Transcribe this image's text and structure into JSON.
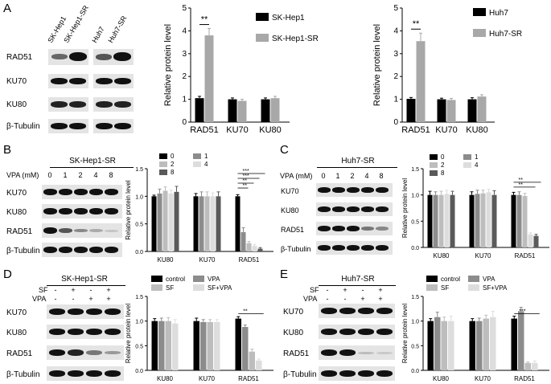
{
  "panels": {
    "A": "A",
    "B": "B",
    "C": "C",
    "D": "D",
    "E": "E"
  },
  "panelA": {
    "lanes": [
      "SK-Hep1",
      "SK-Hep1-SR",
      "Huh7",
      "Huh7-SR"
    ],
    "rows": [
      "RAD51",
      "KU70",
      "KU80",
      "β-Tubulin"
    ]
  },
  "panelB": {
    "title": "SK-Hep1-SR",
    "vpa_label": "VPA (mM)",
    "doses": [
      "0",
      "1",
      "2",
      "4",
      "8"
    ],
    "rows": [
      "KU70",
      "KU80",
      "RAD51",
      "β-Tubulin"
    ]
  },
  "panelC": {
    "title": "Huh7-SR",
    "vpa_label": "VPA (mM)",
    "doses": [
      "0",
      "1",
      "2",
      "4",
      "8"
    ],
    "rows": [
      "KU70",
      "KU80",
      "RAD51",
      "β-Tubulin"
    ]
  },
  "panelD": {
    "title": "SK-Hep1-SR",
    "sf_label": "SF",
    "vpa_label": "VPA",
    "sf_signs": [
      "-",
      "+",
      "-",
      "+"
    ],
    "vpa_signs": [
      "-",
      "-",
      "+",
      "+"
    ],
    "rows": [
      "KU70",
      "KU80",
      "RAD51",
      "β-Tubulin"
    ]
  },
  "panelE": {
    "title": "Huh7-SR",
    "sf_label": "SF",
    "vpa_label": "VPA",
    "sf_signs": [
      "-",
      "+",
      "-",
      "+"
    ],
    "vpa_signs": [
      "-",
      "-",
      "+",
      "+"
    ],
    "rows": [
      "KU70",
      "KU80",
      "RAD51",
      "β-Tubulin"
    ]
  },
  "chart_data": [
    {
      "id": "A1",
      "type": "bar",
      "categories": [
        "RAD51",
        "KU70",
        "KU80"
      ],
      "series": [
        {
          "name": "SK-Hep1",
          "color": "#000000",
          "values": [
            1.05,
            1.0,
            1.0
          ],
          "err": [
            0.08,
            0.06,
            0.06
          ]
        },
        {
          "name": "SK-Hep1-SR",
          "color": "#a8a8a8",
          "values": [
            3.8,
            0.93,
            1.05
          ],
          "err": [
            0.3,
            0.07,
            0.08
          ]
        }
      ],
      "ylabel": "Relative protein level",
      "ylim": [
        0,
        5
      ],
      "yticks": [
        "0",
        "1",
        "2",
        "3",
        "4",
        "5"
      ],
      "sig": [
        {
          "text": "**",
          "cat": 0
        }
      ]
    },
    {
      "id": "A2",
      "type": "bar",
      "categories": [
        "RAD51",
        "KU70",
        "KU80"
      ],
      "series": [
        {
          "name": "Huh7",
          "color": "#000000",
          "values": [
            1.02,
            1.0,
            1.0
          ],
          "err": [
            0.06,
            0.05,
            0.07
          ]
        },
        {
          "name": "Huh7-SR",
          "color": "#a8a8a8",
          "values": [
            3.55,
            0.97,
            1.12
          ],
          "err": [
            0.35,
            0.07,
            0.08
          ]
        }
      ],
      "ylabel": "Relative protein level",
      "ylim": [
        0,
        5
      ],
      "yticks": [
        "0",
        "1",
        "2",
        "3",
        "4",
        "5"
      ],
      "sig": [
        {
          "text": "**",
          "cat": 0
        }
      ]
    },
    {
      "id": "B",
      "type": "bar",
      "categories": [
        "KU80",
        "KU70",
        "RAD51"
      ],
      "series": [
        {
          "name": "0",
          "color": "#000000",
          "values": [
            1.0,
            1.0,
            1.0
          ],
          "err": [
            0.02,
            0.05,
            0.03
          ]
        },
        {
          "name": "1",
          "color": "#8c8c8c",
          "values": [
            1.05,
            1.0,
            0.35
          ],
          "err": [
            0.08,
            0.08,
            0.08
          ]
        },
        {
          "name": "2",
          "color": "#bdbdbd",
          "values": [
            1.1,
            1.0,
            0.15
          ],
          "err": [
            0.07,
            0.08,
            0.03
          ]
        },
        {
          "name": "4",
          "color": "#dddddd",
          "values": [
            1.05,
            1.0,
            0.1
          ],
          "err": [
            0.06,
            0.06,
            0.03
          ]
        },
        {
          "name": "8",
          "color": "#5a5a5a",
          "values": [
            1.08,
            1.0,
            0.05
          ],
          "err": [
            0.1,
            0.08,
            0.02
          ]
        }
      ],
      "ylabel": "Relative protein level",
      "ylim": [
        0,
        1.5
      ],
      "yticks": [
        "0.0",
        "0.5",
        "1.0",
        "1.5"
      ],
      "sig": [
        {
          "text": "***"
        },
        {
          "text": "***"
        },
        {
          "text": "**"
        },
        {
          "text": "**"
        }
      ]
    },
    {
      "id": "C",
      "type": "bar",
      "categories": [
        "KU80",
        "KU70",
        "RAD51"
      ],
      "series": [
        {
          "name": "0",
          "color": "#000000",
          "values": [
            1.0,
            1.0,
            1.0
          ],
          "err": [
            0.07,
            0.06,
            0.05
          ]
        },
        {
          "name": "1",
          "color": "#8c8c8c",
          "values": [
            1.0,
            1.02,
            1.0
          ],
          "err": [
            0.06,
            0.07,
            0.06
          ]
        },
        {
          "name": "2",
          "color": "#bdbdbd",
          "values": [
            1.0,
            1.03,
            0.98
          ],
          "err": [
            0.07,
            0.06,
            0.05
          ]
        },
        {
          "name": "4",
          "color": "#dddddd",
          "values": [
            1.02,
            1.05,
            0.25
          ],
          "err": [
            0.07,
            0.06,
            0.03
          ]
        },
        {
          "name": "8",
          "color": "#5a5a5a",
          "values": [
            1.0,
            1.0,
            0.22
          ],
          "err": [
            0.07,
            0.08,
            0.03
          ]
        }
      ],
      "ylabel": "Relative protein level",
      "ylim": [
        0,
        1.5
      ],
      "yticks": [
        "0.0",
        "0.5",
        "1.0",
        "1.5"
      ],
      "sig": [
        {
          "text": "**"
        },
        {
          "text": "**"
        }
      ]
    },
    {
      "id": "D",
      "type": "bar",
      "categories": [
        "KU80",
        "KU70",
        "RAD51"
      ],
      "series": [
        {
          "name": "control",
          "color": "#000000",
          "values": [
            1.0,
            1.0,
            1.05
          ],
          "err": [
            0.05,
            0.06,
            0.04
          ]
        },
        {
          "name": "VPA",
          "color": "#8c8c8c",
          "values": [
            1.0,
            0.98,
            0.88
          ],
          "err": [
            0.06,
            0.05,
            0.04
          ]
        },
        {
          "name": "SF",
          "color": "#bdbdbd",
          "values": [
            1.0,
            0.98,
            0.38
          ],
          "err": [
            0.07,
            0.05,
            0.05
          ]
        },
        {
          "name": "SF+VPA",
          "color": "#dddddd",
          "values": [
            0.95,
            0.98,
            0.2
          ],
          "err": [
            0.08,
            0.05,
            0.03
          ]
        }
      ],
      "ylabel": "Relative protein level",
      "ylim": [
        0,
        1.5
      ],
      "yticks": [
        "0.0",
        "0.5",
        "1.0",
        "1.5"
      ],
      "sig": [
        {
          "text": "**"
        }
      ]
    },
    {
      "id": "E",
      "type": "bar",
      "categories": [
        "KU80",
        "KU70",
        "RAD51"
      ],
      "series": [
        {
          "name": "control",
          "color": "#000000",
          "values": [
            1.0,
            1.0,
            1.05
          ],
          "err": [
            0.05,
            0.05,
            0.05
          ]
        },
        {
          "name": "VPA",
          "color": "#8c8c8c",
          "values": [
            1.08,
            1.0,
            1.2
          ],
          "err": [
            0.1,
            0.06,
            0.08
          ]
        },
        {
          "name": "SF",
          "color": "#bdbdbd",
          "values": [
            1.0,
            1.05,
            0.15
          ],
          "err": [
            0.08,
            0.07,
            0.02
          ]
        },
        {
          "name": "SF+VPA",
          "color": "#dddddd",
          "values": [
            1.0,
            1.08,
            0.15
          ],
          "err": [
            0.1,
            0.12,
            0.04
          ]
        }
      ],
      "ylabel": "Relative protein level",
      "ylim": [
        0,
        1.5
      ],
      "yticks": [
        "0.0",
        "0.5",
        "1.0",
        "1.5"
      ],
      "sig": [
        {
          "text": "***"
        }
      ]
    }
  ]
}
